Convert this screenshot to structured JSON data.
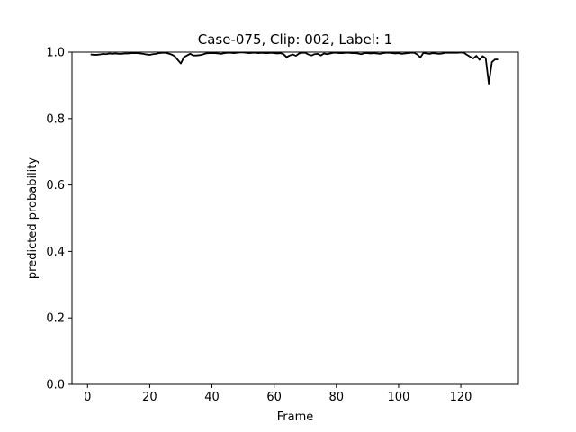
{
  "chart_data": {
    "type": "line",
    "title": "Case-075, Clip: 002, Label: 1",
    "xlabel": "Frame",
    "ylabel": "predicted probability",
    "xlim": [
      -5,
      138.5
    ],
    "ylim": [
      0.0,
      1.0
    ],
    "xticks": [
      0,
      20,
      40,
      60,
      80,
      100,
      120
    ],
    "yticks": [
      0.0,
      0.2,
      0.4,
      0.6,
      0.8,
      1.0
    ],
    "xtick_labels": [
      "0",
      "20",
      "40",
      "60",
      "80",
      "100",
      "120"
    ],
    "ytick_labels": [
      "0.0",
      "0.2",
      "0.4",
      "0.6",
      "0.8",
      "1.0"
    ],
    "grid": false,
    "line_color": "#000000",
    "series": [
      {
        "x": [
          1,
          2,
          3,
          4,
          5,
          6,
          7,
          8,
          9,
          10,
          11,
          12,
          13,
          14,
          15,
          16,
          17,
          18,
          19,
          20,
          21,
          22,
          23,
          24,
          25,
          26,
          27,
          28,
          29,
          30,
          31,
          32,
          33,
          34,
          35,
          36,
          37,
          38,
          39,
          40,
          41,
          42,
          43,
          44,
          45,
          46,
          47,
          48,
          49,
          50,
          51,
          52,
          53,
          54,
          55,
          56,
          57,
          58,
          59,
          60,
          61,
          62,
          63,
          64,
          65,
          66,
          67,
          68,
          69,
          70,
          71,
          72,
          73,
          74,
          75,
          76,
          77,
          78,
          79,
          80,
          81,
          82,
          83,
          84,
          85,
          86,
          87,
          88,
          89,
          90,
          91,
          92,
          93,
          94,
          95,
          96,
          97,
          98,
          99,
          100,
          101,
          102,
          103,
          104,
          105,
          106,
          107,
          108,
          109,
          110,
          111,
          112,
          113,
          114,
          115,
          116,
          117,
          118,
          119,
          120,
          121,
          122,
          123,
          124,
          125,
          126,
          127,
          128,
          129,
          130,
          131,
          132
        ],
        "values": [
          0.993,
          0.992,
          0.992,
          0.993,
          0.995,
          0.994,
          0.996,
          0.995,
          0.996,
          0.995,
          0.995,
          0.996,
          0.996,
          0.997,
          0.997,
          0.997,
          0.996,
          0.995,
          0.993,
          0.992,
          0.994,
          0.995,
          0.997,
          0.998,
          0.998,
          0.996,
          0.993,
          0.988,
          0.977,
          0.966,
          0.985,
          0.99,
          0.995,
          0.99,
          0.99,
          0.991,
          0.993,
          0.996,
          0.997,
          0.997,
          0.997,
          0.996,
          0.995,
          0.997,
          0.998,
          0.998,
          0.997,
          0.998,
          0.999,
          0.999,
          0.998,
          0.997,
          0.998,
          0.998,
          0.997,
          0.998,
          0.997,
          0.997,
          0.998,
          0.997,
          0.996,
          0.997,
          0.994,
          0.985,
          0.99,
          0.993,
          0.989,
          0.996,
          0.998,
          0.998,
          0.993,
          0.99,
          0.994,
          0.995,
          0.99,
          0.996,
          0.994,
          0.996,
          0.998,
          0.998,
          0.997,
          0.997,
          0.998,
          0.998,
          0.997,
          0.997,
          0.996,
          0.994,
          0.997,
          0.997,
          0.996,
          0.997,
          0.996,
          0.995,
          0.997,
          0.998,
          0.998,
          0.997,
          0.996,
          0.997,
          0.995,
          0.996,
          0.997,
          0.998,
          0.998,
          0.993,
          0.984,
          0.998,
          0.996,
          0.995,
          0.997,
          0.996,
          0.995,
          0.996,
          0.998,
          0.998,
          0.998,
          0.998,
          0.998,
          0.999,
          0.998,
          0.992,
          0.986,
          0.981,
          0.989,
          0.977,
          0.988,
          0.982,
          0.905,
          0.97,
          0.978,
          0.978
        ]
      }
    ]
  }
}
